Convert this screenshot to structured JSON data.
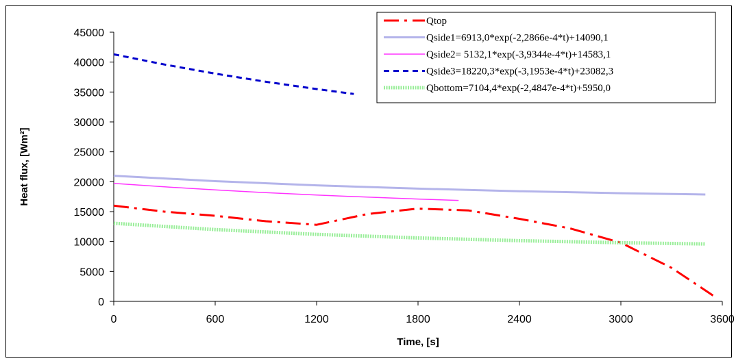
{
  "chart_data": {
    "type": "line",
    "xlabel": "Time, [s]",
    "ylabel": "Heat flux, [Wm²]",
    "xlim": [
      0,
      3600
    ],
    "ylim": [
      0,
      45000
    ],
    "xticks": [
      0,
      600,
      1200,
      1800,
      2400,
      3000,
      3600
    ],
    "yticks": [
      0,
      5000,
      10000,
      15000,
      20000,
      25000,
      30000,
      35000,
      40000,
      45000
    ],
    "grid": false,
    "legend_position": "top-right",
    "series": [
      {
        "name": "Qtop",
        "color": "#ff0000",
        "style": "dashdot",
        "x": [
          0,
          300,
          600,
          900,
          1200,
          1500,
          1800,
          2100,
          2400,
          2700,
          3000,
          3300,
          3560
        ],
        "y": [
          16000,
          15000,
          14300,
          13400,
          12800,
          14600,
          15500,
          15200,
          13800,
          12200,
          9800,
          5600,
          700
        ]
      },
      {
        "name": "Qside1=6913,0*exp(-2,2866e-4*t)+14090,1",
        "color": "#b4b4ea",
        "style": "solid-thick",
        "x": [
          0,
          600,
          1200,
          1800,
          2400,
          3000,
          3500
        ],
        "y": [
          21003,
          20099,
          19394,
          18845,
          18416,
          18082,
          17858
        ]
      },
      {
        "name": "Qside2= 5132,1*exp(-3,9344e-4*t)+14583,1",
        "color": "#ff33ff",
        "style": "solid",
        "x": [
          0,
          300,
          600,
          900,
          1200,
          1500,
          1800,
          2040
        ],
        "y": [
          19715,
          19140,
          18625,
          18170,
          17772,
          17422,
          17107,
          16878
        ]
      },
      {
        "name": "Qside3=18220,3*exp(-3,1953e-4*t)+23082,3",
        "color": "#0000cc",
        "style": "dashed",
        "x": [
          0,
          300,
          600,
          900,
          1200,
          1420
        ],
        "y": [
          41303,
          39594,
          38070,
          36708,
          35493,
          34668
        ]
      },
      {
        "name": "Qbottom=7104,4*exp(-2,4847e-4*t)+5950,0",
        "color": "#99ee99",
        "style": "dotted-band",
        "x": [
          0,
          600,
          1200,
          1800,
          2400,
          3000,
          3500
        ],
        "y": [
          13054,
          11995,
          11198,
          10598,
          10146,
          9806,
          9591
        ]
      }
    ]
  }
}
